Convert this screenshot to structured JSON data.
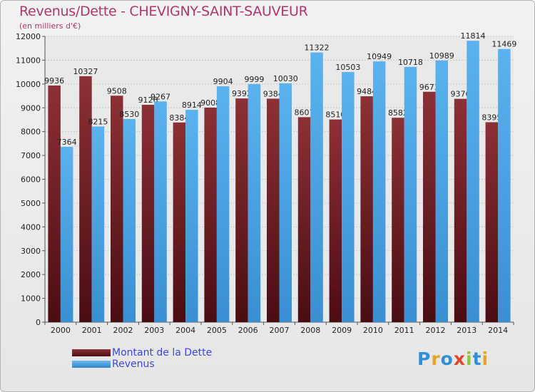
{
  "title": "Revenus/Dette - CHEVIGNY-SAINT-SAUVEUR",
  "subtitle": "(en milliers d'€)",
  "brand": {
    "text": "Proxiti",
    "letters": [
      {
        "ch": "P",
        "color": "#2f8fd8"
      },
      {
        "ch": "r",
        "color": "#e8a321"
      },
      {
        "ch": "o",
        "color": "#2f8fd8"
      },
      {
        "ch": "x",
        "color": "#e0462a"
      },
      {
        "ch": "i",
        "color": "#8cc63f"
      },
      {
        "ch": "t",
        "color": "#2f8fd8"
      },
      {
        "ch": "i",
        "color": "#e8a321"
      }
    ]
  },
  "legend": [
    {
      "label": "Montant de la Dette",
      "color": "#6e1f24"
    },
    {
      "label": "Revenus",
      "color": "#4ea7e6"
    }
  ],
  "chart_data": {
    "type": "bar",
    "title": "Revenus/Dette - CHEVIGNY-SAINT-SAUVEUR",
    "ylabel": "(en milliers d'€)",
    "categories": [
      "2000",
      "2001",
      "2002",
      "2003",
      "2004",
      "2005",
      "2006",
      "2007",
      "2008",
      "2009",
      "2010",
      "2011",
      "2012",
      "2013",
      "2014"
    ],
    "series": [
      {
        "name": "Montant de la Dette",
        "color": "#6e1f24",
        "values": [
          9936,
          10327,
          9508,
          9126,
          8384,
          9008,
          9392,
          9384,
          8607,
          8510,
          9484,
          8582,
          9673,
          9376,
          8395
        ],
        "labels": [
          "9936",
          "10327",
          "9508",
          "9126",
          "8384",
          "9008",
          "9392",
          "9384",
          "8607",
          "8510",
          "9484",
          "8582",
          "9673",
          "9376",
          "8395"
        ]
      },
      {
        "name": "Revenus",
        "color": "#4ea7e6",
        "values": [
          7364,
          8215,
          8530,
          9267,
          8914,
          9904,
          9999,
          10030,
          11322,
          10503,
          10949,
          10718,
          10989,
          11814,
          11469
        ],
        "labels": [
          "7364",
          "8215",
          "8530",
          "9267",
          "8914",
          "9904",
          "9999",
          "10030",
          "11322",
          "10503",
          "10949",
          "10718",
          "10989",
          "11814",
          "11469"
        ]
      }
    ],
    "ylim": [
      0,
      12000
    ],
    "yticks": [
      0,
      1000,
      2000,
      3000,
      4000,
      5000,
      6000,
      7000,
      8000,
      9000,
      10000,
      11000,
      12000
    ],
    "grid": true
  }
}
